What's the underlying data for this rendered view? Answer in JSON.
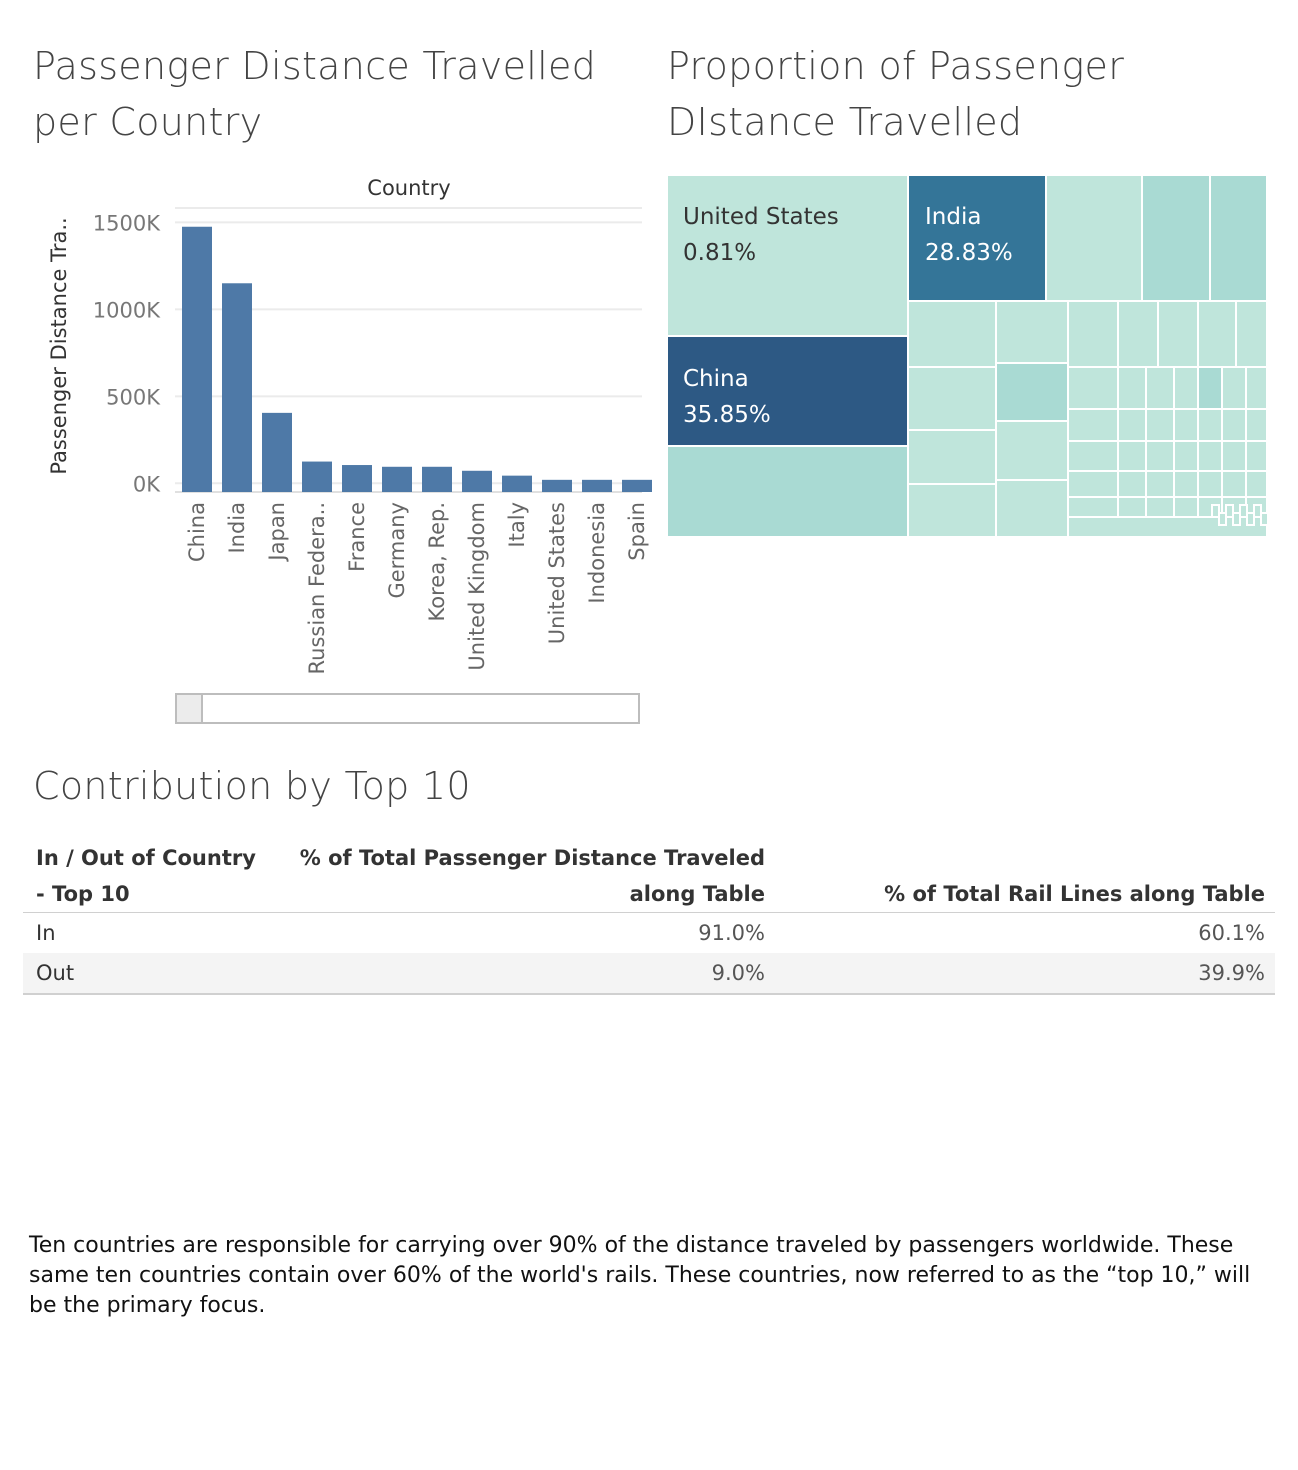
{
  "titles": {
    "bar": "Passenger Distance Travelled per Country",
    "treemap": "Proportion of Passenger DIstance Travelled",
    "table": "Contribution  by Top 10"
  },
  "colors": {
    "bar": "#4e79a7",
    "gridline": "#ebebeb",
    "tree_light": "#bfe5db",
    "tree_light2": "#a9dad3",
    "tree_mid": "#347598",
    "tree_dark": "#2d5984"
  },
  "chart_data": [
    {
      "type": "bar",
      "title": "Passenger Distance Travelled per Country",
      "xlabel": "Country",
      "ylabel": "Passenger Distance Tra..",
      "ylim": [
        -50000,
        1600000
      ],
      "y_ticks": [
        0,
        500000,
        1000000,
        1500000
      ],
      "y_tick_labels": [
        "0K",
        "500K",
        "1000K",
        "1500K"
      ],
      "grid": true,
      "categories": [
        "China",
        "India",
        "Japan",
        "Russian Federa..",
        "France",
        "Germany",
        "Korea, Rep.",
        "United Kingdom",
        "Italy",
        "United States",
        "Indonesia",
        "Spain"
      ],
      "values": [
        1475000,
        1150000,
        405000,
        125000,
        105000,
        95000,
        95000,
        72000,
        44000,
        20000,
        20000,
        20000
      ]
    },
    {
      "type": "treemap",
      "title": "Proportion of Passenger DIstance Travelled",
      "labeled_items": [
        {
          "label": "China",
          "value": "35.85%"
        },
        {
          "label": "India",
          "value": "28.83%"
        },
        {
          "label": "United States",
          "value": "0.81%"
        }
      ]
    },
    {
      "type": "table",
      "title": "Contribution  by Top 10",
      "columns": [
        "In / Out of Country - Top 10",
        "% of Total Passenger Distance Traveled along Table",
        "% of Total Rail Lines along Table"
      ],
      "rows": [
        [
          "In",
          "91.0%",
          "60.1%"
        ],
        [
          "Out",
          "9.0%",
          "39.9%"
        ]
      ]
    }
  ],
  "table": {
    "header_dim_line1": "In / Out of Country",
    "header_dim_line2": "- Top 10",
    "header_m1_line1": "% of Total Passenger Distance Traveled",
    "header_m1_line2": "along Table",
    "header_m2": "% of Total Rail Lines along Table",
    "rows": [
      {
        "dim": "In",
        "m1": "91.0%",
        "m2": "60.1%"
      },
      {
        "dim": "Out",
        "m1": "9.0%",
        "m2": "39.9%"
      }
    ]
  },
  "note": "Ten countries are responsible for carrying over 90% of the distance traveled by passengers worldwide. These same ten countries contain over 60% of the world's rails. These countries, now referred to as the “top 10,” will be the primary focus."
}
